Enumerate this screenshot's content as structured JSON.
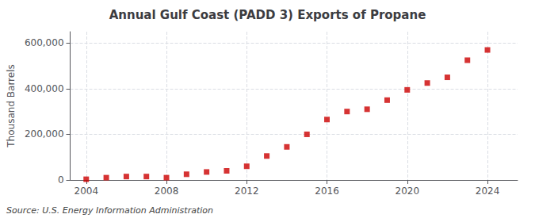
{
  "chart_data": {
    "type": "scatter",
    "title": "Annual Gulf Coast (PADD 3) Exports of Propane",
    "ylabel": "Thousand Barrels",
    "annotation": "Source: U.S. Energy Information Administration",
    "x": [
      2004,
      2005,
      2006,
      2007,
      2008,
      2009,
      2010,
      2011,
      2012,
      2013,
      2014,
      2015,
      2016,
      2017,
      2018,
      2019,
      2020,
      2021,
      2022,
      2023,
      2024
    ],
    "values": [
      3000,
      10000,
      15000,
      15000,
      10000,
      25000,
      35000,
      40000,
      60000,
      105000,
      145000,
      200000,
      265000,
      300000,
      310000,
      350000,
      395000,
      425000,
      450000,
      525000,
      570000
    ],
    "color": "#cc0000",
    "marker": "square",
    "xlim": [
      2003.2,
      2025.5
    ],
    "xticks": [
      2004,
      2008,
      2012,
      2016,
      2020,
      2024
    ],
    "ylim": [
      0,
      650000
    ],
    "yticks": [
      0,
      {
        "value": 200000,
        "label": "200,000"
      },
      {
        "value": 400000,
        "label": "400,000"
      },
      {
        "value": 600000,
        "label": "600,000"
      }
    ],
    "grid": true
  }
}
